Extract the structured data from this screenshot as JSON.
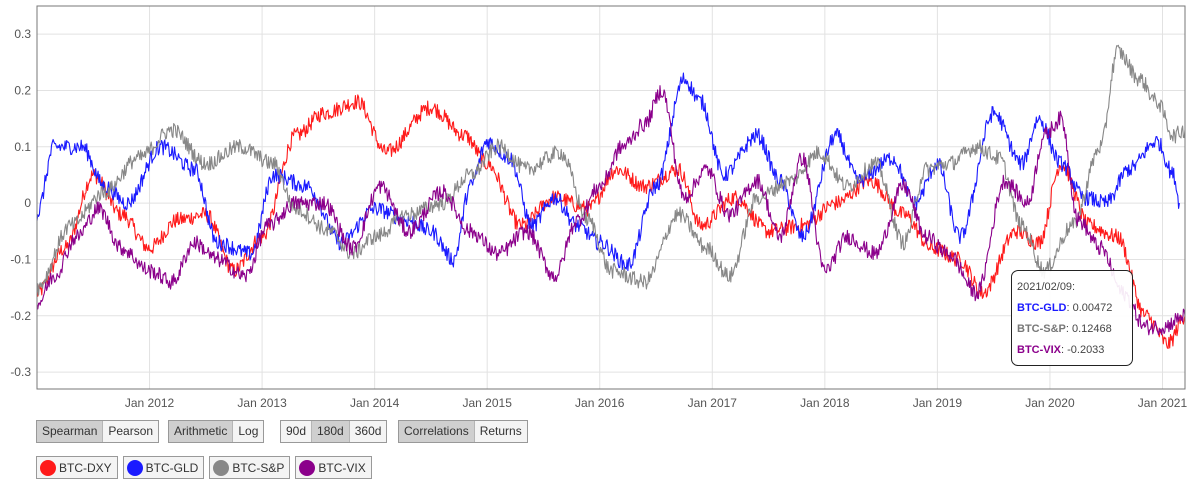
{
  "chart_data": {
    "type": "line",
    "x_labels": [
      "Jan 2012",
      "Jan 2013",
      "Jan 2014",
      "Jan 2015",
      "Jan 2016",
      "Jan 2017",
      "Jan 2018",
      "Jan 2019",
      "Jan 2020",
      "Jan 2021"
    ],
    "y_ticks": [
      "0.3",
      "0.2",
      "0.1",
      "0",
      "-0.1",
      "-0.2",
      "-0.3"
    ],
    "ylim": [
      -0.33,
      0.35
    ],
    "grid": true,
    "series": [
      {
        "name": "BTC-DXY",
        "color": "#ff1a1a",
        "points": [
          [
            2011.0,
            -0.16
          ],
          [
            2011.25,
            -0.08
          ],
          [
            2011.5,
            0.05
          ],
          [
            2011.75,
            -0.02
          ],
          [
            2012.0,
            -0.08
          ],
          [
            2012.25,
            -0.03
          ],
          [
            2012.5,
            -0.02
          ],
          [
            2012.75,
            -0.12
          ],
          [
            2013.0,
            -0.06
          ],
          [
            2013.3,
            0.12
          ],
          [
            2013.55,
            0.16
          ],
          [
            2013.85,
            0.18
          ],
          [
            2014.1,
            0.09
          ],
          [
            2014.5,
            0.17
          ],
          [
            2014.8,
            0.12
          ],
          [
            2015.0,
            0.07
          ],
          [
            2015.3,
            -0.04
          ],
          [
            2015.6,
            0.01
          ],
          [
            2015.9,
            -0.01
          ],
          [
            2016.15,
            0.06
          ],
          [
            2016.4,
            0.03
          ],
          [
            2016.7,
            0.06
          ],
          [
            2016.9,
            -0.04
          ],
          [
            2017.2,
            0.01
          ],
          [
            2017.5,
            -0.05
          ],
          [
            2017.8,
            -0.04
          ],
          [
            2018.1,
            0.0
          ],
          [
            2018.4,
            0.04
          ],
          [
            2018.7,
            -0.02
          ],
          [
            2018.95,
            -0.08
          ],
          [
            2019.2,
            -0.1
          ],
          [
            2019.4,
            -0.16
          ],
          [
            2019.7,
            -0.05
          ],
          [
            2019.9,
            -0.07
          ],
          [
            2020.1,
            0.07
          ],
          [
            2020.35,
            -0.04
          ],
          [
            2020.6,
            -0.06
          ],
          [
            2020.85,
            -0.2
          ],
          [
            2021.05,
            -0.25
          ],
          [
            2021.2,
            -0.2
          ]
        ]
      },
      {
        "name": "BTC-GLD",
        "color": "#1a1aff",
        "points": [
          [
            2011.0,
            -0.02
          ],
          [
            2011.15,
            0.1
          ],
          [
            2011.4,
            0.1
          ],
          [
            2011.6,
            0.03
          ],
          [
            2011.8,
            0.0
          ],
          [
            2012.1,
            0.1
          ],
          [
            2012.4,
            0.06
          ],
          [
            2012.6,
            -0.07
          ],
          [
            2012.9,
            -0.09
          ],
          [
            2013.1,
            0.05
          ],
          [
            2013.4,
            0.03
          ],
          [
            2013.7,
            -0.07
          ],
          [
            2014.0,
            -0.01
          ],
          [
            2014.3,
            -0.03
          ],
          [
            2014.5,
            -0.05
          ],
          [
            2014.7,
            -0.1
          ],
          [
            2014.85,
            0.03
          ],
          [
            2015.0,
            0.11
          ],
          [
            2015.2,
            0.08
          ],
          [
            2015.4,
            -0.04
          ],
          [
            2015.6,
            0.01
          ],
          [
            2015.8,
            -0.04
          ],
          [
            2016.0,
            -0.07
          ],
          [
            2016.25,
            -0.11
          ],
          [
            2016.5,
            0.03
          ],
          [
            2016.75,
            0.22
          ],
          [
            2016.9,
            0.18
          ],
          [
            2017.1,
            0.05
          ],
          [
            2017.4,
            0.12
          ],
          [
            2017.6,
            0.04
          ],
          [
            2017.8,
            -0.06
          ],
          [
            2018.1,
            0.12
          ],
          [
            2018.3,
            0.04
          ],
          [
            2018.6,
            0.08
          ],
          [
            2018.8,
            0.0
          ],
          [
            2019.0,
            0.07
          ],
          [
            2019.2,
            -0.06
          ],
          [
            2019.5,
            0.16
          ],
          [
            2019.75,
            0.07
          ],
          [
            2019.9,
            0.15
          ],
          [
            2020.1,
            0.07
          ],
          [
            2020.3,
            0.01
          ],
          [
            2020.5,
            0.0
          ],
          [
            2020.7,
            0.06
          ],
          [
            2020.95,
            0.11
          ],
          [
            2021.1,
            0.05
          ],
          [
            2021.15,
            0.0
          ]
        ]
      },
      {
        "name": "BTC-S&P",
        "color": "#888888",
        "points": [
          [
            2011.0,
            -0.15
          ],
          [
            2011.3,
            -0.04
          ],
          [
            2011.6,
            0.02
          ],
          [
            2011.9,
            0.08
          ],
          [
            2012.2,
            0.13
          ],
          [
            2012.5,
            0.07
          ],
          [
            2012.8,
            0.1
          ],
          [
            2013.1,
            0.07
          ],
          [
            2013.3,
            -0.01
          ],
          [
            2013.6,
            -0.05
          ],
          [
            2013.8,
            -0.09
          ],
          [
            2014.0,
            -0.06
          ],
          [
            2014.3,
            -0.02
          ],
          [
            2014.6,
            0.0
          ],
          [
            2014.85,
            0.05
          ],
          [
            2015.1,
            0.1
          ],
          [
            2015.35,
            0.06
          ],
          [
            2015.65,
            0.09
          ],
          [
            2015.9,
            -0.03
          ],
          [
            2016.1,
            -0.12
          ],
          [
            2016.4,
            -0.14
          ],
          [
            2016.7,
            -0.02
          ],
          [
            2016.95,
            -0.08
          ],
          [
            2017.15,
            -0.13
          ],
          [
            2017.4,
            0.01
          ],
          [
            2017.7,
            0.04
          ],
          [
            2017.95,
            0.09
          ],
          [
            2018.2,
            0.03
          ],
          [
            2018.45,
            0.07
          ],
          [
            2018.7,
            -0.07
          ],
          [
            2018.9,
            0.06
          ],
          [
            2019.1,
            0.07
          ],
          [
            2019.35,
            0.1
          ],
          [
            2019.55,
            0.08
          ],
          [
            2019.75,
            -0.04
          ],
          [
            2019.95,
            -0.12
          ],
          [
            2020.2,
            -0.04
          ],
          [
            2020.45,
            0.1
          ],
          [
            2020.6,
            0.27
          ],
          [
            2020.8,
            0.22
          ],
          [
            2020.95,
            0.18
          ],
          [
            2021.1,
            0.12
          ],
          [
            2021.2,
            0.13
          ]
        ]
      },
      {
        "name": "BTC-VIX",
        "color": "#8b008b",
        "points": [
          [
            2011.0,
            -0.18
          ],
          [
            2011.15,
            -0.13
          ],
          [
            2011.35,
            -0.06
          ],
          [
            2011.55,
            -0.01
          ],
          [
            2011.75,
            -0.08
          ],
          [
            2012.0,
            -0.12
          ],
          [
            2012.2,
            -0.14
          ],
          [
            2012.4,
            -0.07
          ],
          [
            2012.6,
            -0.1
          ],
          [
            2012.85,
            -0.13
          ],
          [
            2013.05,
            -0.04
          ],
          [
            2013.3,
            0.0
          ],
          [
            2013.55,
            0.0
          ],
          [
            2013.8,
            -0.08
          ],
          [
            2014.05,
            0.03
          ],
          [
            2014.3,
            -0.05
          ],
          [
            2014.6,
            0.02
          ],
          [
            2014.85,
            -0.05
          ],
          [
            2015.1,
            -0.09
          ],
          [
            2015.35,
            -0.05
          ],
          [
            2015.6,
            -0.13
          ],
          [
            2015.8,
            -0.03
          ],
          [
            2016.0,
            0.03
          ],
          [
            2016.2,
            0.1
          ],
          [
            2016.4,
            0.14
          ],
          [
            2016.55,
            0.2
          ],
          [
            2016.75,
            0.01
          ],
          [
            2016.95,
            0.06
          ],
          [
            2017.15,
            -0.02
          ],
          [
            2017.4,
            0.04
          ],
          [
            2017.6,
            -0.06
          ],
          [
            2017.8,
            0.08
          ],
          [
            2018.0,
            -0.12
          ],
          [
            2018.2,
            -0.06
          ],
          [
            2018.45,
            -0.09
          ],
          [
            2018.7,
            0.03
          ],
          [
            2018.9,
            -0.06
          ],
          [
            2019.1,
            -0.09
          ],
          [
            2019.35,
            -0.16
          ],
          [
            2019.6,
            0.04
          ],
          [
            2019.8,
            0.0
          ],
          [
            2019.95,
            0.12
          ],
          [
            2020.1,
            0.15
          ],
          [
            2020.25,
            -0.03
          ],
          [
            2020.45,
            -0.08
          ],
          [
            2020.65,
            -0.16
          ],
          [
            2020.85,
            -0.22
          ],
          [
            2021.0,
            -0.22
          ],
          [
            2021.2,
            -0.2
          ]
        ]
      }
    ]
  },
  "controls": {
    "method": [
      "Spearman",
      "Pearson"
    ],
    "scale": [
      "Arithmetic",
      "Log"
    ],
    "window": [
      "90d",
      "180d",
      "360d"
    ],
    "view": [
      "Correlations",
      "Returns"
    ]
  },
  "legend": [
    {
      "label": "BTC-DXY",
      "color": "#ff1a1a"
    },
    {
      "label": "BTC-GLD",
      "color": "#1a1aff"
    },
    {
      "label": "BTC-S&P",
      "color": "#888888"
    },
    {
      "label": "BTC-VIX",
      "color": "#8b008b"
    }
  ],
  "tooltip": {
    "date": "2021/02/09:",
    "rows": [
      {
        "label": "BTC-GLD",
        "value": ": 0.00472",
        "color": "#1a1aff"
      },
      {
        "label": "BTC-S&P",
        "value": ": 0.12468",
        "color": "#777777"
      },
      {
        "label": "BTC-VIX",
        "value": ": -0.2033",
        "color": "#8b008b"
      }
    ]
  }
}
